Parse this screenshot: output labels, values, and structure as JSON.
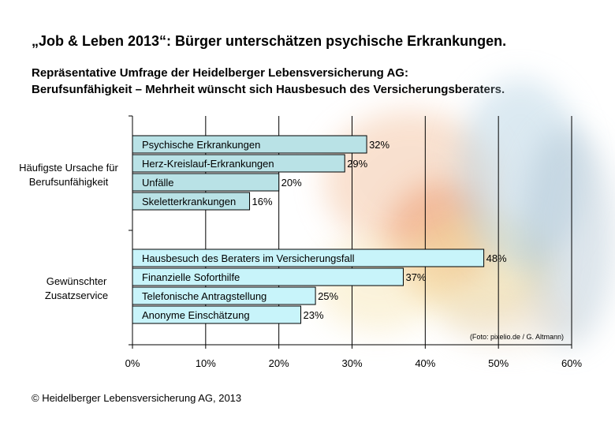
{
  "title": "„Job & Leben 2013“: Bürger unterschätzen psychische Erkrankungen.",
  "subtitle_lines": [
    "Repräsentative Umfrage der Heidelberger Lebensversicherung AG:",
    "Berufsunfähigkeit – Mehrheit wünscht sich Hausbesuch des Versicherungsberaters."
  ],
  "copyright": "© Heidelberger Lebensversicherung AG, 2013",
  "photo_credit": "(Foto: pixelio.de / G. Altmann)",
  "group_labels": [
    [
      "Häufigste Ursache für",
      "Berufsunfähigkeit"
    ],
    [
      "Gewünschter",
      "Zusatzservice"
    ]
  ],
  "colors": {
    "bar_group1": "#b9e2e6",
    "bar_group2": "#c8f4fa",
    "bar_stroke": "#000000",
    "grid": "#000000"
  },
  "chart_data": {
    "type": "bar",
    "orientation": "horizontal",
    "groups": [
      {
        "categories": [
          "Psychische Erkrankungen",
          "Herz-Kreislauf-Erkrankungen",
          "Unfälle",
          "Skeletterkrankungen"
        ],
        "values": [
          32,
          29,
          20,
          16
        ]
      },
      {
        "categories": [
          "Hausbesuch des Beraters im Versicherungsfall",
          "Finanzielle Soforthilfe",
          "Telefonische Antragstellung",
          "Anonyme Einschätzung"
        ],
        "values": [
          48,
          37,
          25,
          23
        ]
      }
    ],
    "value_labels": [
      [
        "32%",
        "29%",
        "20%",
        "16%"
      ],
      [
        "48%",
        "37%",
        "25%",
        "23%"
      ]
    ],
    "xlim": [
      0,
      60
    ],
    "xticks": [
      0,
      10,
      20,
      30,
      40,
      50,
      60
    ],
    "xtick_labels": [
      "0%",
      "10%",
      "20%",
      "30%",
      "40%",
      "50%",
      "60%"
    ],
    "grid": true
  }
}
